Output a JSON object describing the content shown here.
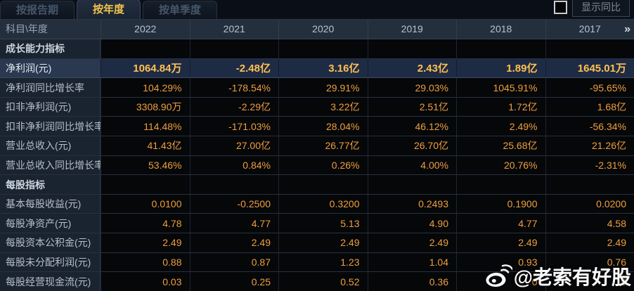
{
  "tabs": [
    {
      "key": "by-report-period",
      "label": "按报告期",
      "active": false
    },
    {
      "key": "by-year",
      "label": "按年度",
      "active": true
    },
    {
      "key": "by-quarter",
      "label": "按单季度",
      "active": false
    }
  ],
  "controls": {
    "show_yoy_label": "显示同比",
    "checkbox_checked": false
  },
  "table": {
    "corner_header": "科目\\年度",
    "year_columns": [
      "2022",
      "2021",
      "2020",
      "2019",
      "2018",
      "2017"
    ],
    "more_icon": "»",
    "rows": [
      {
        "type": "section",
        "label": "成长能力指标",
        "values": [
          "",
          "",
          "",
          "",
          "",
          ""
        ]
      },
      {
        "type": "highlight",
        "label": "净利润(元)",
        "values": [
          "1064.84万",
          "-2.48亿",
          "3.16亿",
          "2.43亿",
          "1.89亿",
          "1645.01万"
        ]
      },
      {
        "type": "normal",
        "label": "净利润同比增长率",
        "values": [
          "104.29%",
          "-178.54%",
          "29.91%",
          "29.03%",
          "1045.91%",
          "-95.65%"
        ]
      },
      {
        "type": "normal",
        "label": "扣非净利润(元)",
        "values": [
          "3308.90万",
          "-2.29亿",
          "3.22亿",
          "2.51亿",
          "1.72亿",
          "1.68亿"
        ]
      },
      {
        "type": "normal",
        "label": "扣非净利润同比增长率",
        "values": [
          "114.48%",
          "-171.03%",
          "28.04%",
          "46.12%",
          "2.49%",
          "-56.34%"
        ]
      },
      {
        "type": "normal",
        "label": "营业总收入(元)",
        "values": [
          "41.43亿",
          "27.00亿",
          "26.77亿",
          "26.70亿",
          "25.68亿",
          "21.26亿"
        ]
      },
      {
        "type": "normal",
        "label": "营业总收入同比增长率",
        "values": [
          "53.46%",
          "0.84%",
          "0.26%",
          "4.00%",
          "20.76%",
          "-2.31%"
        ]
      },
      {
        "type": "section",
        "label": "每股指标",
        "values": [
          "",
          "",
          "",
          "",
          "",
          ""
        ]
      },
      {
        "type": "normal",
        "label": "基本每股收益(元)",
        "values": [
          "0.0100",
          "-0.2500",
          "0.3200",
          "0.2493",
          "0.1900",
          "0.0200"
        ]
      },
      {
        "type": "normal",
        "label": "每股净资产(元)",
        "values": [
          "4.78",
          "4.77",
          "5.13",
          "4.90",
          "4.77",
          "4.58"
        ]
      },
      {
        "type": "normal",
        "label": "每股资本公积金(元)",
        "values": [
          "2.49",
          "2.49",
          "2.49",
          "2.49",
          "2.49",
          "2.49"
        ]
      },
      {
        "type": "normal",
        "label": "每股未分配利润(元)",
        "values": [
          "0.88",
          "0.87",
          "1.23",
          "1.04",
          "0.93",
          "0.76"
        ]
      },
      {
        "type": "normal",
        "label": "每股经营现金流(元)",
        "values": [
          "0.03",
          "0.25",
          "0.52",
          "0.36",
          "0",
          "9"
        ]
      }
    ]
  },
  "watermark": {
    "icon": "weibo-logo",
    "text": "@老索有好股"
  },
  "colors": {
    "active_tab_text": "#f2c34a",
    "value_orange": "#ee9f3e",
    "highlight_value_gold": "#ffc052",
    "header_bg": "#242f3e",
    "label_cell_bg": "#1a2330",
    "highlight_row_bg": "#1e2b44",
    "data_cell_bg": "#060709"
  }
}
